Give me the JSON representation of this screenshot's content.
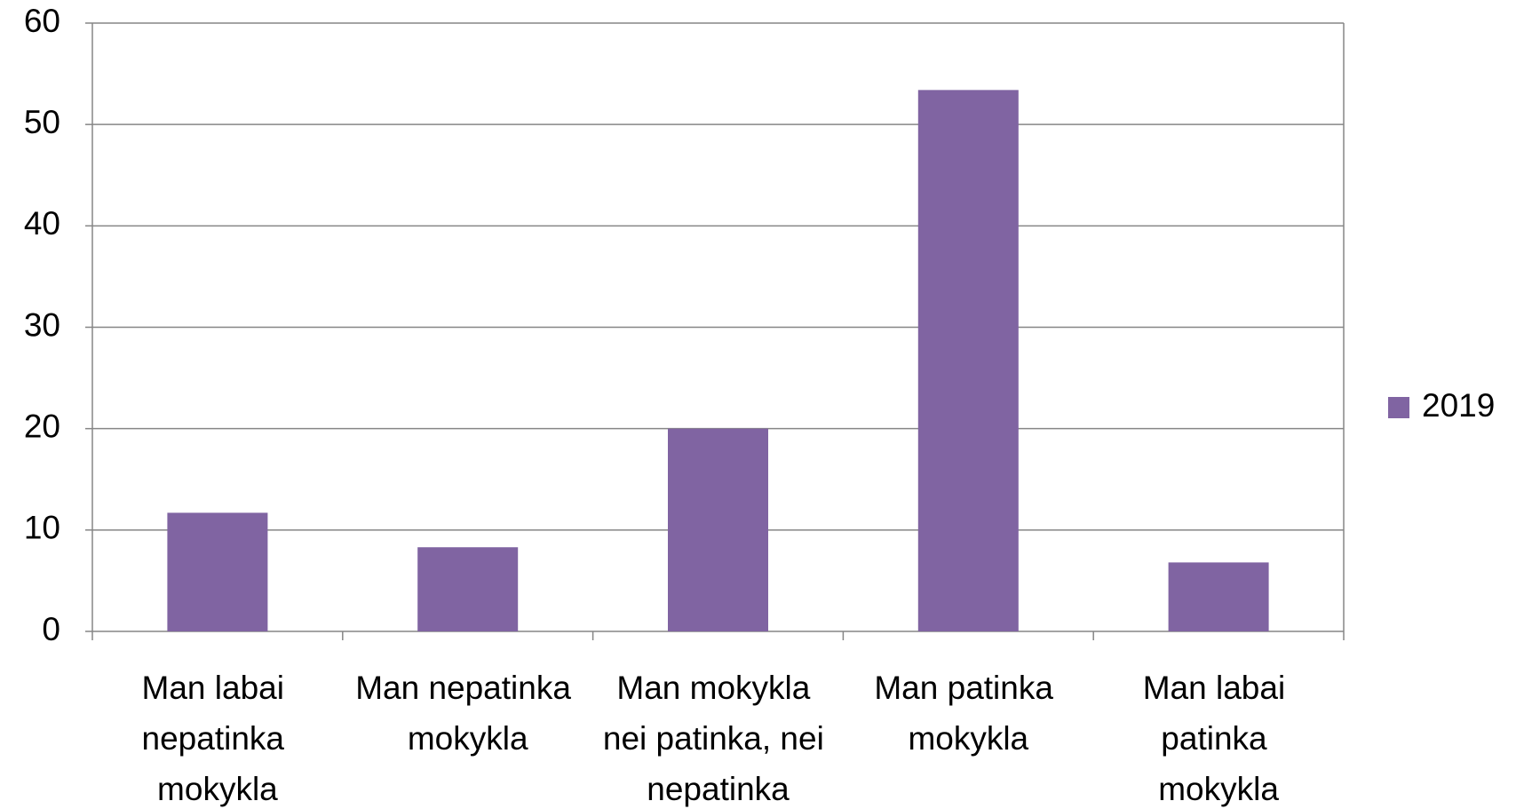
{
  "chart_data": {
    "type": "bar",
    "categories": [
      "Man labai nepatinka mokykla",
      "Man nepatinka mokykla",
      "Man mokykla nei patinka, nei nepatinka",
      "Man patinka mokykla",
      "Man labai patinka mokykla"
    ],
    "series": [
      {
        "name": "2019",
        "color": "#8064a2",
        "values": [
          11.7,
          8.3,
          20,
          53.4,
          6.8
        ]
      }
    ],
    "ylim": [
      0,
      60
    ],
    "yticks": [
      0,
      10,
      20,
      30,
      40,
      50,
      60
    ],
    "grid": true,
    "legend": "right"
  }
}
